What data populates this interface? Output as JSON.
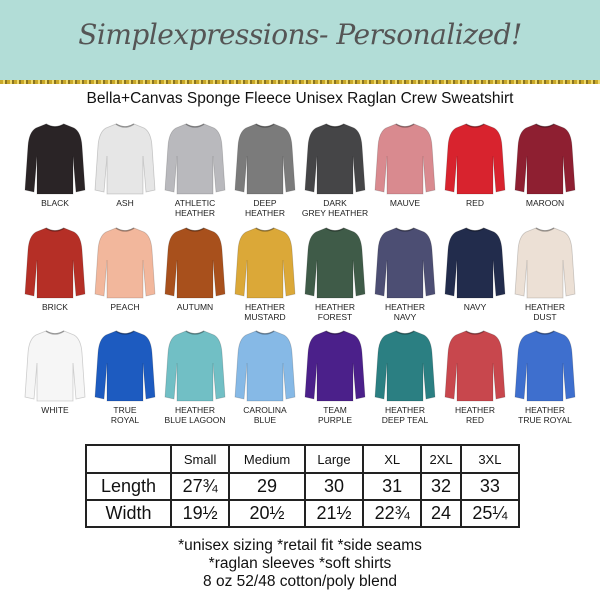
{
  "header": {
    "brand": "Simplexpressions- Personalized!",
    "subtitle": "Bella+Canvas Sponge Fleece Unisex Raglan Crew Sweatshirt",
    "banner_color": "#b2ddd7"
  },
  "colors": [
    {
      "label": "BLACK",
      "hex": "#2a2426"
    },
    {
      "label": "ASH",
      "hex": "#e6e6e6"
    },
    {
      "label": "ATHLETIC HEATHER",
      "hex": "#b9b9bd"
    },
    {
      "label": "DEEP HEATHER",
      "hex": "#7b7b7b"
    },
    {
      "label": "DARK GREY HEATHER",
      "hex": "#454547"
    },
    {
      "label": "MAUVE",
      "hex": "#d98a8f"
    },
    {
      "label": "RED",
      "hex": "#d8232e"
    },
    {
      "label": "MAROON",
      "hex": "#8e1f31"
    },
    {
      "label": "BRICK",
      "hex": "#b52f26"
    },
    {
      "label": "PEACH",
      "hex": "#f2b79c"
    },
    {
      "label": "AUTUMN",
      "hex": "#a8501c"
    },
    {
      "label": "HEATHER MUSTARD",
      "hex": "#dba838"
    },
    {
      "label": "HEATHER FOREST",
      "hex": "#3f5b48"
    },
    {
      "label": "HEATHER NAVY",
      "hex": "#4c4e73"
    },
    {
      "label": "NAVY",
      "hex": "#222c4c"
    },
    {
      "label": "HEATHER DUST",
      "hex": "#ece0d5"
    },
    {
      "label": "WHITE",
      "hex": "#f6f6f6"
    },
    {
      "label": "TRUE ROYAL",
      "hex": "#1d5bc0"
    },
    {
      "label": "HEATHER BLUE LAGOON",
      "hex": "#71bfc5"
    },
    {
      "label": "CAROLINA BLUE",
      "hex": "#86b9e6"
    },
    {
      "label": "TEAM PURPLE",
      "hex": "#4b208a"
    },
    {
      "label": "HEATHER DEEP TEAL",
      "hex": "#2b7f82"
    },
    {
      "label": "HEATHER RED",
      "hex": "#c8474d"
    },
    {
      "label": "HEATHER TRUE ROYAL",
      "hex": "#3e6fce"
    }
  ],
  "size_chart": {
    "columns": [
      "",
      "Small",
      "Medium",
      "Large",
      "XL",
      "2XL",
      "3XL"
    ],
    "rows": [
      {
        "label": "Length",
        "values": [
          "27¾",
          "29",
          "30",
          "31",
          "32",
          "33"
        ]
      },
      {
        "label": "Width",
        "values": [
          "19½",
          "20½",
          "21½",
          "22¾",
          "24",
          "25¼"
        ]
      }
    ]
  },
  "notes": [
    "*unisex sizing *retail fit *side seams",
    "*raglan sleeves *soft shirts",
    "8 oz 52/48 cotton/poly blend"
  ]
}
